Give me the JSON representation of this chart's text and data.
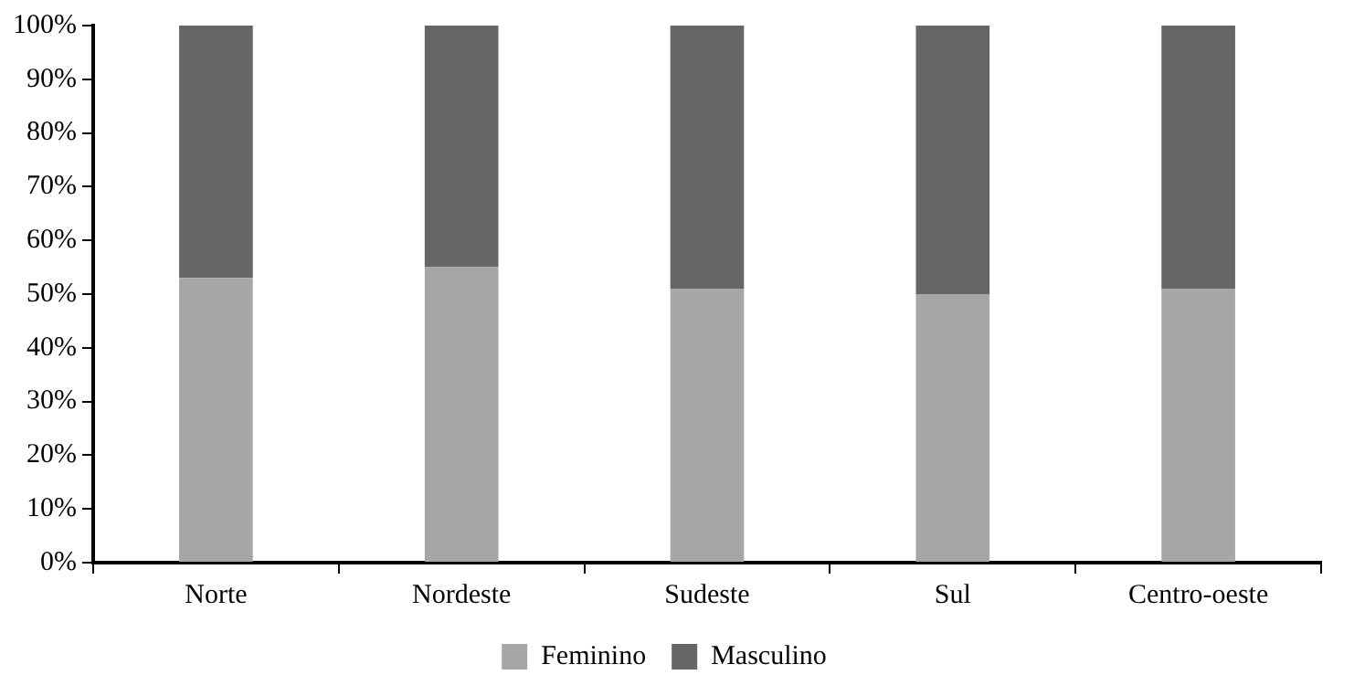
{
  "chart_data": {
    "type": "bar",
    "stacked": true,
    "categories": [
      "Norte",
      "Nordeste",
      "Sudeste",
      "Sul",
      "Centro-oeste"
    ],
    "series": [
      {
        "name": "Feminino",
        "color": "#a6a6a6",
        "values": [
          53,
          55,
          51,
          50,
          51
        ]
      },
      {
        "name": "Masculino",
        "color": "#666666",
        "values": [
          47,
          45,
          49,
          50,
          49
        ]
      }
    ],
    "ylim": [
      0,
      100
    ],
    "yticks": [
      {
        "value": 0,
        "label": "0%"
      },
      {
        "value": 10,
        "label": "10%"
      },
      {
        "value": 20,
        "label": "20%"
      },
      {
        "value": 30,
        "label": "30%"
      },
      {
        "value": 40,
        "label": "40%"
      },
      {
        "value": 50,
        "label": "50%"
      },
      {
        "value": 60,
        "label": "60%"
      },
      {
        "value": 70,
        "label": "70%"
      },
      {
        "value": 80,
        "label": "80%"
      },
      {
        "value": 90,
        "label": "90%"
      },
      {
        "value": 100,
        "label": "100%"
      }
    ],
    "grid": false,
    "legend": "bottom"
  }
}
